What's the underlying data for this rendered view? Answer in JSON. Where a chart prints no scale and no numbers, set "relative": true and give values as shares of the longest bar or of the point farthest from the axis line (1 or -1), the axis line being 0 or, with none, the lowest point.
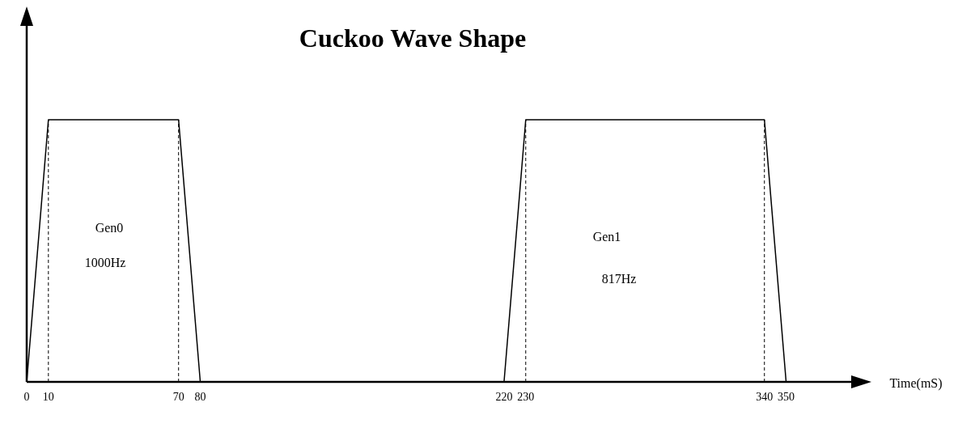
{
  "chart_data": {
    "type": "line",
    "title": "Cuckoo Wave Shape",
    "xlabel": "Time(mS)",
    "relative": true,
    "x": [
      0,
      10,
      70,
      80,
      220,
      230,
      340,
      350
    ],
    "series": [
      {
        "color": "#000000",
        "values": [
          0,
          1,
          1,
          0,
          0,
          1,
          1,
          0
        ]
      }
    ],
    "xlim": [
      0,
      380
    ],
    "xticks": [
      0,
      10,
      70,
      80,
      220,
      230,
      340,
      350
    ],
    "ref_lines": [
      {
        "axis": "x",
        "value": 10,
        "line_style": "dashed",
        "color": "#000000"
      },
      {
        "axis": "x",
        "value": 70,
        "line_style": "dashed",
        "color": "#000000"
      },
      {
        "axis": "x",
        "value": 230,
        "line_style": "dashed",
        "color": "#000000"
      },
      {
        "axis": "x",
        "value": 340,
        "line_style": "dashed",
        "color": "#000000"
      }
    ],
    "annotations": [
      "Gen0",
      "1000Hz",
      "Gen1",
      "817Hz"
    ],
    "grid": false,
    "marker": "none",
    "line_style": "solid"
  }
}
